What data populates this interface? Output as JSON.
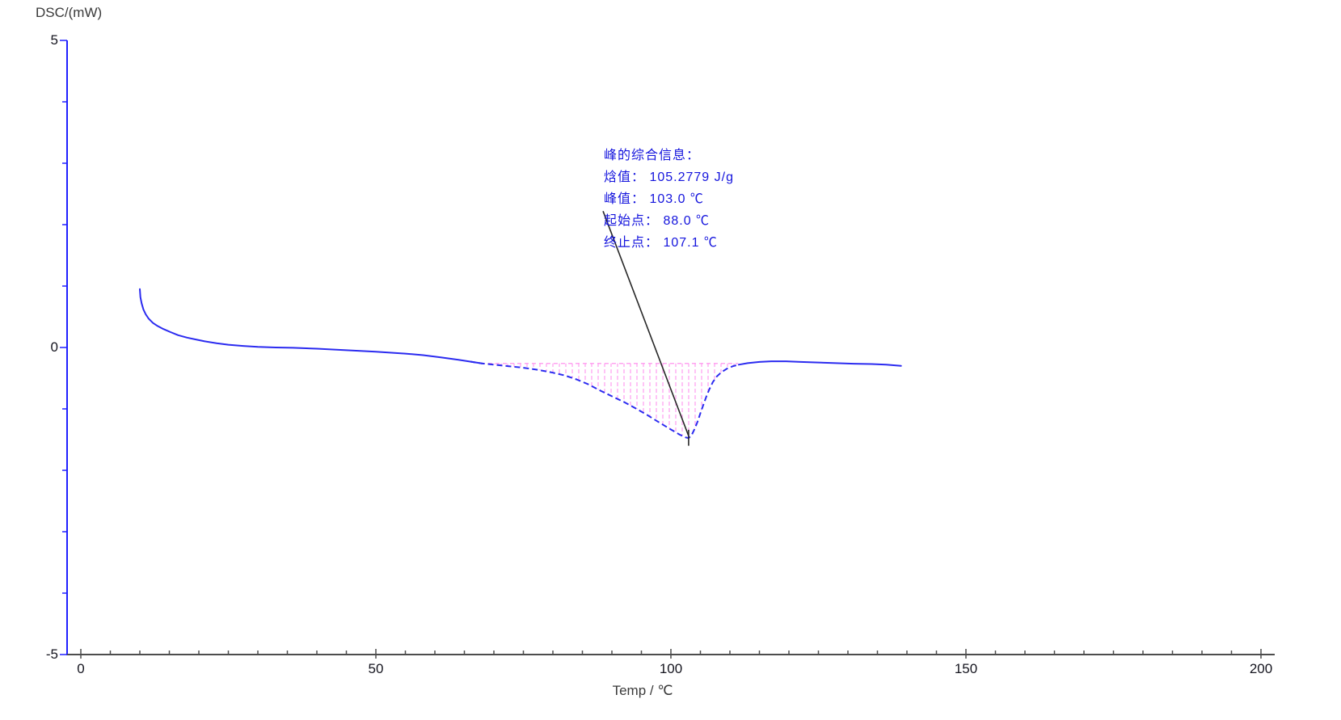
{
  "chart_data": {
    "type": "line",
    "title": "",
    "ylabel": "DSC/(mW)",
    "xlabel": "Temp / ℃",
    "xlim": [
      0,
      200
    ],
    "ylim": [
      -5,
      5
    ],
    "grid": false,
    "legend": "none",
    "x_axis": {
      "major_ticks": [
        0,
        50,
        100,
        150,
        200
      ],
      "major_tick_labels": [
        "0",
        "50",
        "100",
        "150",
        "200"
      ],
      "minor_tick_step": 5
    },
    "y_axis": {
      "major_ticks": [
        5,
        0,
        -5
      ],
      "major_tick_labels": [
        "5",
        "0",
        "-5"
      ],
      "minor_tick_step": 1
    },
    "colors": {
      "curve": "#2b2bf0",
      "y_axis": "#2020ff",
      "x_axis": "#4d4d4d",
      "tick_text": "#15151f",
      "axis_title_text": "#3a3a3a",
      "hatch_pink": "#ffa3f0",
      "pointer_black": "#282828",
      "annotation_blue": "#1414dd"
    },
    "series": [
      {
        "name": "DSC",
        "color": "#2b2bf0",
        "dashed_from_t": 66.5,
        "dashed_to_t": 112.0,
        "points": [
          [
            10.0,
            0.95
          ],
          [
            10.1,
            0.82
          ],
          [
            10.3,
            0.72
          ],
          [
            10.6,
            0.62
          ],
          [
            11.0,
            0.54
          ],
          [
            11.5,
            0.47
          ],
          [
            12.2,
            0.4
          ],
          [
            13.0,
            0.35
          ],
          [
            14.0,
            0.3
          ],
          [
            15.2,
            0.25
          ],
          [
            16.5,
            0.2
          ],
          [
            18.0,
            0.16
          ],
          [
            19.5,
            0.13
          ],
          [
            21.0,
            0.1
          ],
          [
            23.0,
            0.07
          ],
          [
            25.0,
            0.045
          ],
          [
            27.5,
            0.025
          ],
          [
            30.0,
            0.01
          ],
          [
            33.0,
            0.0
          ],
          [
            36.0,
            -0.005
          ],
          [
            40.0,
            -0.02
          ],
          [
            45.0,
            -0.045
          ],
          [
            50.0,
            -0.07
          ],
          [
            55.0,
            -0.1
          ],
          [
            58.0,
            -0.125
          ],
          [
            61.0,
            -0.16
          ],
          [
            64.0,
            -0.2
          ],
          [
            66.0,
            -0.23
          ],
          [
            68.0,
            -0.26
          ],
          [
            70.0,
            -0.28
          ],
          [
            72.5,
            -0.305
          ],
          [
            75.0,
            -0.33
          ],
          [
            77.5,
            -0.365
          ],
          [
            80.0,
            -0.41
          ],
          [
            82.0,
            -0.455
          ],
          [
            84.0,
            -0.52
          ],
          [
            86.0,
            -0.6
          ],
          [
            88.0,
            -0.7
          ],
          [
            90.0,
            -0.795
          ],
          [
            92.0,
            -0.885
          ],
          [
            94.0,
            -0.99
          ],
          [
            96.0,
            -1.1
          ],
          [
            98.0,
            -1.22
          ],
          [
            100.0,
            -1.335
          ],
          [
            101.5,
            -1.42
          ],
          [
            102.5,
            -1.465
          ],
          [
            103.0,
            -1.475
          ],
          [
            103.5,
            -1.43
          ],
          [
            104.0,
            -1.33
          ],
          [
            104.5,
            -1.21
          ],
          [
            105.0,
            -1.07
          ],
          [
            105.5,
            -0.935
          ],
          [
            106.0,
            -0.8
          ],
          [
            106.5,
            -0.685
          ],
          [
            107.1,
            -0.565
          ],
          [
            107.8,
            -0.47
          ],
          [
            108.6,
            -0.4
          ],
          [
            109.5,
            -0.345
          ],
          [
            110.5,
            -0.305
          ],
          [
            111.5,
            -0.28
          ],
          [
            113.0,
            -0.255
          ],
          [
            115.0,
            -0.235
          ],
          [
            117.0,
            -0.225
          ],
          [
            119.5,
            -0.225
          ],
          [
            122.0,
            -0.235
          ],
          [
            125.0,
            -0.245
          ],
          [
            128.0,
            -0.255
          ],
          [
            131.0,
            -0.265
          ],
          [
            134.0,
            -0.27
          ],
          [
            136.5,
            -0.28
          ],
          [
            139.0,
            -0.3
          ]
        ]
      }
    ],
    "integration": {
      "baseline_y": -0.26,
      "t_start": 67.8,
      "t_end": 111.4,
      "baseline_color": "#ffa3f0",
      "hatch_color": "#ffa3f0"
    },
    "peak_annotation": {
      "color": "#1414dd",
      "lines": [
        "峰的综合信息：",
        "焓值： 105.2779 J/g",
        "峰值： 103.0 ℃",
        "起始点： 88.0 ℃",
        "终止点： 107.1 ℃"
      ],
      "values": {
        "enthalpy_J_per_g": 105.2779,
        "peak_c": 103.0,
        "onset_c": 88.0,
        "end_c": 107.1
      },
      "pointer_from": [
        88.5,
        2.22
      ],
      "pointer_to": [
        103.0,
        -1.44
      ],
      "peak_marker_t": 103.0,
      "peak_marker_y_top": -1.34,
      "peak_marker_y_bottom": -1.6
    }
  }
}
